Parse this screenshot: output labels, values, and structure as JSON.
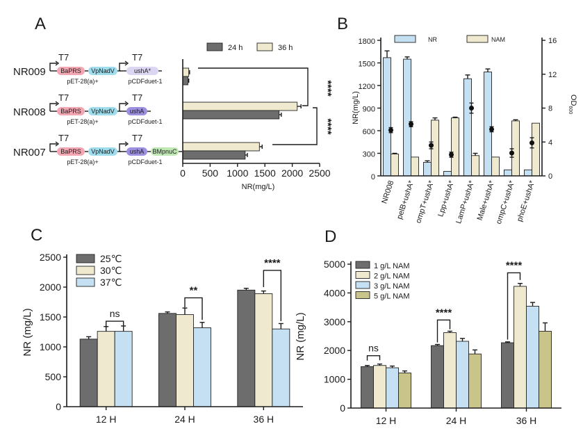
{
  "colors": {
    "dark": "#6d6d6d",
    "cream": "#efe9cf",
    "light_blue": "#c5dff3",
    "olive": "#c9c48a",
    "pill_pink": "#f2a7b3",
    "pill_cyan": "#9fdcec",
    "pill_lavender": "#dcd6f2",
    "pill_purple": "#9d8fe0",
    "pill_green": "#bfe8b5"
  },
  "panel_labels": {
    "a": "A",
    "b": "B",
    "c": "C",
    "d": "D"
  },
  "panel_a": {
    "strains": [
      {
        "name": "NR009",
        "construct1": {
          "promoter": "T7",
          "genes": [
            "BaPRS",
            "VpNadV"
          ],
          "plasmid": "pET-28(a)+"
        },
        "construct2": {
          "promoter": "T7",
          "genes": [
            "ushA*"
          ],
          "plasmid": "pCDFduet-1"
        }
      },
      {
        "name": "NR008",
        "construct1": {
          "promoter": "T7",
          "genes": [
            "BaPRS",
            "VpNadV"
          ],
          "plasmid": "pET-28(a)+"
        },
        "construct2": {
          "promoter": "T7",
          "genes": [
            "ushA"
          ],
          "plasmid": "pCDFduet-1"
        }
      },
      {
        "name": "NR007",
        "construct1": {
          "promoter": "T7",
          "genes": [
            "BaPRS",
            "VpNadV"
          ],
          "plasmid": "pET-28(a)+"
        },
        "construct2": {
          "promoter": "T7",
          "genes": [
            "ushA",
            "BMpnuC"
          ],
          "plasmid": "pCDFduet-1"
        }
      }
    ],
    "significance": [
      "****",
      "****"
    ]
  },
  "panel_b_secondary": {
    "ylabel_right_main": "OD",
    "ylabel_right_sub": "600",
    "yticks_right": [
      "0",
      "4",
      "8",
      "12",
      "16"
    ],
    "od_points": [
      5.4,
      6.1,
      3.6,
      2.5,
      8.0,
      5.5,
      2.7,
      3.9
    ],
    "od_errors": [
      0.3,
      0.3,
      0.4,
      0.3,
      0.6,
      0.3,
      0.5,
      0.6
    ]
  },
  "chart_data": [
    {
      "panel": "A",
      "type": "bar",
      "orientation": "horizontal",
      "categories": [
        "NR009",
        "NR008",
        "NR007"
      ],
      "series": [
        {
          "name": "24 h",
          "values": [
            95,
            1760,
            1140
          ],
          "errors": [
            15,
            40,
            40
          ]
        },
        {
          "name": "36 h",
          "values": [
            110,
            2090,
            1400
          ],
          "errors": [
            15,
            70,
            50
          ]
        }
      ],
      "xlabel": "NR(mg/L)",
      "xlim": [
        0,
        2500
      ],
      "xticks": [
        "0",
        "500",
        "1000",
        "1500",
        "2000",
        "2500"
      ],
      "legend": "top"
    },
    {
      "panel": "B",
      "type": "bar",
      "categories": [
        "NR008",
        "pelB+ushA*",
        "ompT+ushA*",
        "Lpp+ushA*",
        "LamP+ushA*",
        "Male+ushA*",
        "ompC+ushA*",
        "phoE+ushA*"
      ],
      "series": [
        {
          "name": "NR",
          "values": [
            1570,
            1550,
            180,
            60,
            1290,
            1380,
            80,
            80
          ],
          "errors": [
            90,
            30,
            20,
            0,
            50,
            40,
            0,
            0
          ]
        },
        {
          "name": "NAM",
          "values": [
            290,
            250,
            740,
            770,
            270,
            250,
            730,
            700
          ],
          "errors": [
            10,
            0,
            30,
            10,
            30,
            0,
            15,
            0
          ]
        }
      ],
      "ylabel": "NR(mg/L)",
      "ylim": [
        0,
        1800
      ],
      "yticks": [
        "0",
        "300",
        "600",
        "900",
        "1200",
        "1500",
        "1800"
      ],
      "legend": "top"
    },
    {
      "panel": "C",
      "type": "bar",
      "categories": [
        "12 H",
        "24 H",
        "36 H"
      ],
      "series": [
        {
          "name": "25℃",
          "values": [
            1130,
            1560,
            1950
          ],
          "errors": [
            40,
            25,
            30
          ]
        },
        {
          "name": "30℃",
          "values": [
            1260,
            1540,
            1890
          ],
          "errors": [
            80,
            110,
            45
          ]
        },
        {
          "name": "37℃",
          "values": [
            1260,
            1320,
            1300
          ],
          "errors": [
            90,
            90,
            90
          ]
        }
      ],
      "ylabel": "NR (mg/L)",
      "ylim": [
        0,
        2500
      ],
      "yticks": [
        "0",
        "500",
        "1000",
        "1500",
        "2000",
        "2500"
      ],
      "annotations": [
        "ns",
        "**",
        "****"
      ],
      "legend": "top-left"
    },
    {
      "panel": "D",
      "type": "bar",
      "categories": [
        "12 H",
        "24 H",
        "36 H"
      ],
      "series": [
        {
          "name": "1 g/L NAM",
          "values": [
            1440,
            2170,
            2270
          ],
          "errors": [
            40,
            40,
            30
          ]
        },
        {
          "name": "2 g/L NAM",
          "values": [
            1480,
            2620,
            4230
          ],
          "errors": [
            50,
            50,
            100
          ]
        },
        {
          "name": "3 g/L NAM",
          "values": [
            1400,
            2320,
            3540
          ],
          "errors": [
            60,
            100,
            130
          ]
        },
        {
          "name": "5 g/L NAM",
          "values": [
            1220,
            1880,
            2670
          ],
          "errors": [
            70,
            140,
            290
          ]
        }
      ],
      "ylabel": "NR (mg/L)",
      "ylim": [
        0,
        5000
      ],
      "yticks": [
        "0",
        "1000",
        "2000",
        "3000",
        "4000",
        "5000"
      ],
      "annotations": [
        "ns",
        "****",
        "****"
      ],
      "legend": "top-left"
    }
  ]
}
